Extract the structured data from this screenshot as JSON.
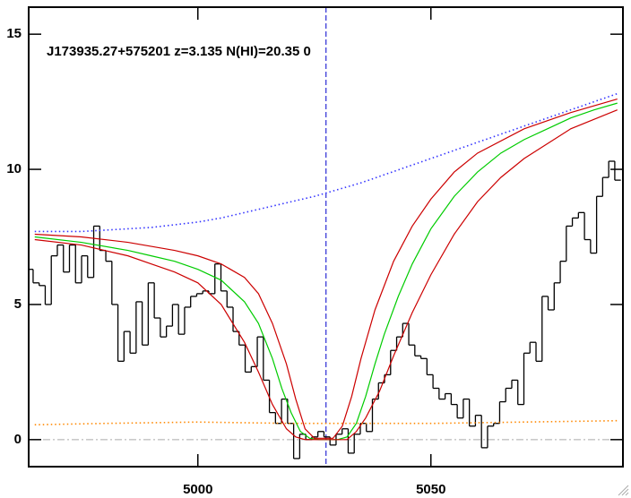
{
  "chart_data": {
    "type": "line",
    "title": "J173935.27+575201 z=3.135 N(HI)=20.35 0",
    "xlim": [
      4963.7,
      5091.2
    ],
    "xticks": [
      5000,
      5050
    ],
    "ylim": [
      -1,
      16
    ],
    "yticks": [
      0,
      5,
      10,
      15
    ],
    "vline": 5027.5,
    "hline": 0,
    "series": [
      {
        "color": "#000000",
        "style": "step",
        "x": [
          4964.0,
          4965.3,
          4966.6,
          4967.9,
          4969.2,
          4970.5,
          4971.8,
          4973.1,
          4974.4,
          4975.7,
          4977.0,
          4978.3,
          4979.6,
          4980.9,
          4982.2,
          4983.5,
          4984.8,
          4986.1,
          4987.4,
          4988.7,
          4990.0,
          4991.3,
          4992.6,
          4993.9,
          4995.2,
          4996.5,
          4997.8,
          4999.1,
          5000.4,
          5001.7,
          5003.0,
          5004.3,
          5005.6,
          5006.9,
          5008.2,
          5009.5,
          5010.8,
          5012.1,
          5013.4,
          5014.7,
          5016.0,
          5017.3,
          5018.6,
          5019.9,
          5021.2,
          5022.5,
          5023.8,
          5025.1,
          5026.4,
          5027.7,
          5029.0,
          5030.3,
          5031.6,
          5032.9,
          5034.2,
          5035.5,
          5036.8,
          5038.1,
          5039.4,
          5040.7,
          5042.0,
          5043.3,
          5044.6,
          5045.9,
          5047.2,
          5048.5,
          5049.8,
          5051.1,
          5052.4,
          5053.7,
          5055.0,
          5056.3,
          5057.6,
          5058.9,
          5060.2,
          5061.5,
          5062.8,
          5064.1,
          5065.4,
          5066.7,
          5068.0,
          5069.3,
          5070.6,
          5071.9,
          5073.2,
          5074.5,
          5075.8,
          5077.1,
          5078.4,
          5079.7,
          5081.0,
          5082.3,
          5083.6,
          5084.9,
          5086.2,
          5087.5,
          5088.8,
          5090.1
        ],
        "values": [
          6.3,
          5.8,
          5.7,
          5.0,
          6.8,
          7.2,
          6.2,
          7.2,
          5.8,
          6.8,
          6.0,
          7.9,
          7.0,
          6.6,
          5.0,
          2.9,
          4.0,
          3.2,
          5.1,
          3.5,
          5.8,
          4.5,
          3.8,
          4.2,
          5.0,
          3.9,
          4.9,
          5.3,
          5.4,
          5.5,
          5.4,
          6.5,
          5.5,
          4.9,
          4.0,
          3.5,
          2.5,
          2.7,
          3.8,
          2.2,
          1.0,
          0.6,
          1.5,
          0.6,
          -0.7,
          0.2,
          0.0,
          0.1,
          0.3,
          0.1,
          -0.2,
          0.2,
          0.4,
          -0.5,
          0.2,
          0.6,
          0.3,
          1.5,
          2.1,
          2.4,
          3.3,
          3.8,
          4.3,
          3.5,
          3.1,
          3.0,
          2.4,
          1.9,
          1.5,
          1.7,
          1.3,
          0.8,
          1.5,
          0.5,
          0.9,
          -0.3,
          0.5,
          0.6,
          1.4,
          1.9,
          2.2,
          1.3,
          3.2,
          3.6,
          2.9,
          5.3,
          4.8,
          5.8,
          6.6,
          7.9,
          8.2,
          8.4,
          7.4,
          6.9,
          9.0,
          9.7,
          10.3,
          9.6
        ]
      },
      {
        "color": "#3333ff",
        "style": "dotted",
        "x": [
          4965,
          4970,
          4975,
          4980,
          4985,
          4990,
          4995,
          5000,
          5005,
          5010,
          5015,
          5020,
          5025,
          5030,
          5035,
          5040,
          5045,
          5050,
          5055,
          5060,
          5065,
          5070,
          5075,
          5080,
          5085,
          5090
        ],
        "values": [
          7.7,
          7.7,
          7.7,
          7.75,
          7.8,
          7.85,
          7.95,
          8.05,
          8.2,
          8.4,
          8.6,
          8.8,
          9.0,
          9.25,
          9.5,
          9.8,
          10.1,
          10.4,
          10.7,
          11.0,
          11.3,
          11.6,
          11.9,
          12.2,
          12.5,
          12.8
        ]
      },
      {
        "color": "#00cc00",
        "style": "solid",
        "x": [
          4965,
          4975,
          4985,
          4990,
          4995,
          5000,
          5005,
          5010,
          5013,
          5016,
          5018,
          5020,
          5022,
          5024,
          5026,
          5030,
          5032,
          5034,
          5036,
          5038,
          5040,
          5043,
          5046,
          5050,
          5055,
          5060,
          5065,
          5070,
          5075,
          5080,
          5085,
          5090
        ],
        "values": [
          7.5,
          7.3,
          7.0,
          6.8,
          6.6,
          6.3,
          5.9,
          5.1,
          4.3,
          3.0,
          1.9,
          1.0,
          0.3,
          0.05,
          0,
          0,
          0.1,
          0.6,
          1.6,
          2.8,
          3.9,
          5.3,
          6.5,
          7.8,
          9.0,
          9.9,
          10.6,
          11.1,
          11.5,
          11.9,
          12.2,
          12.45
        ]
      },
      {
        "color": "#cc0000",
        "style": "solid",
        "x": [
          4965,
          4975,
          4985,
          4990,
          4995,
          5000,
          5005,
          5010,
          5013,
          5016,
          5019,
          5021,
          5023,
          5025,
          5029,
          5031,
          5033,
          5035,
          5038,
          5042,
          5046,
          5050,
          5055,
          5060,
          5070,
          5080,
          5090
        ],
        "values": [
          7.6,
          7.5,
          7.3,
          7.15,
          7.0,
          6.8,
          6.5,
          6.0,
          5.4,
          4.3,
          2.8,
          1.5,
          0.4,
          0.05,
          0.05,
          0.5,
          1.6,
          3.0,
          4.8,
          6.6,
          7.9,
          8.9,
          9.9,
          10.6,
          11.5,
          12.1,
          12.6
        ]
      },
      {
        "color": "#cc0000",
        "style": "solid",
        "x": [
          4965,
          4975,
          4985,
          4990,
          4995,
          5000,
          5005,
          5010,
          5013,
          5016,
          5019,
          5021,
          5023,
          5032,
          5034,
          5036,
          5039,
          5042,
          5046,
          5050,
          5055,
          5060,
          5065,
          5070,
          5080,
          5090
        ],
        "values": [
          7.4,
          7.2,
          6.8,
          6.5,
          6.2,
          5.8,
          5.0,
          3.6,
          2.5,
          1.3,
          0.4,
          0.1,
          0,
          0,
          0.3,
          0.8,
          1.8,
          3.1,
          4.7,
          6.1,
          7.6,
          8.8,
          9.7,
          10.4,
          11.5,
          12.2
        ]
      },
      {
        "color": "#ff8800",
        "style": "dotted",
        "x": [
          4965,
          4980,
          5000,
          5020,
          5035,
          5050,
          5070,
          5090
        ],
        "values": [
          0.55,
          0.6,
          0.65,
          0.6,
          0.6,
          0.6,
          0.65,
          0.7
        ]
      }
    ]
  }
}
